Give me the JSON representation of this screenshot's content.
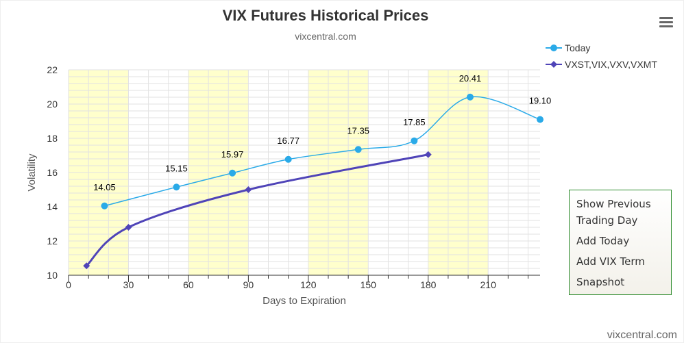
{
  "header": {
    "title": "VIX Futures Historical Prices",
    "subtitle": "vixcentral.com"
  },
  "menu": {
    "icon": "hamburger-menu-icon"
  },
  "legend": {
    "items": [
      {
        "label": "Today",
        "color": "#2aaae8",
        "marker": "circle"
      },
      {
        "label": "VXST,VIX,VXV,VXMT",
        "color": "#4f44b8",
        "marker": "diamond"
      }
    ]
  },
  "options": {
    "show_previous_line1": "Show Previous",
    "show_previous_line2": "Trading Day",
    "add_today": "Add Today",
    "add_vix_term": "Add VIX Term",
    "snapshot": "Snapshot"
  },
  "credit": "vixcentral.com",
  "chart_data": {
    "type": "line",
    "xlabel": "Days to Expiration",
    "ylabel": "Volatility",
    "xlim": [
      0,
      236
    ],
    "ylim": [
      10,
      22
    ],
    "x_ticks": [
      0,
      30,
      60,
      90,
      120,
      150,
      180,
      210
    ],
    "y_ticks": [
      10,
      12,
      14,
      16,
      18,
      20,
      22
    ],
    "grid": true,
    "legend_position": "top-right",
    "band_color": "#ffffcc",
    "bands": [
      [
        0,
        30
      ],
      [
        60,
        90
      ],
      [
        120,
        150
      ],
      [
        180,
        210
      ]
    ],
    "series": [
      {
        "name": "Today",
        "color": "#2aaae8",
        "marker": "circle",
        "show_labels": true,
        "points": [
          {
            "x": 18,
            "y": 14.05,
            "label": "14.05"
          },
          {
            "x": 54,
            "y": 15.15,
            "label": "15.15"
          },
          {
            "x": 82,
            "y": 15.97,
            "label": "15.97"
          },
          {
            "x": 110,
            "y": 16.77,
            "label": "16.77"
          },
          {
            "x": 145,
            "y": 17.35,
            "label": "17.35"
          },
          {
            "x": 173,
            "y": 17.85,
            "label": "17.85"
          },
          {
            "x": 201,
            "y": 20.41,
            "label": "20.41"
          },
          {
            "x": 236,
            "y": 19.1,
            "label": "19.10"
          }
        ]
      },
      {
        "name": "VXST,VIX,VXV,VXMT",
        "color": "#4f44b8",
        "marker": "diamond",
        "show_labels": false,
        "points": [
          {
            "x": 9,
            "y": 10.55
          },
          {
            "x": 30,
            "y": 12.8
          },
          {
            "x": 90,
            "y": 15.0
          },
          {
            "x": 180,
            "y": 17.05
          }
        ]
      }
    ]
  }
}
